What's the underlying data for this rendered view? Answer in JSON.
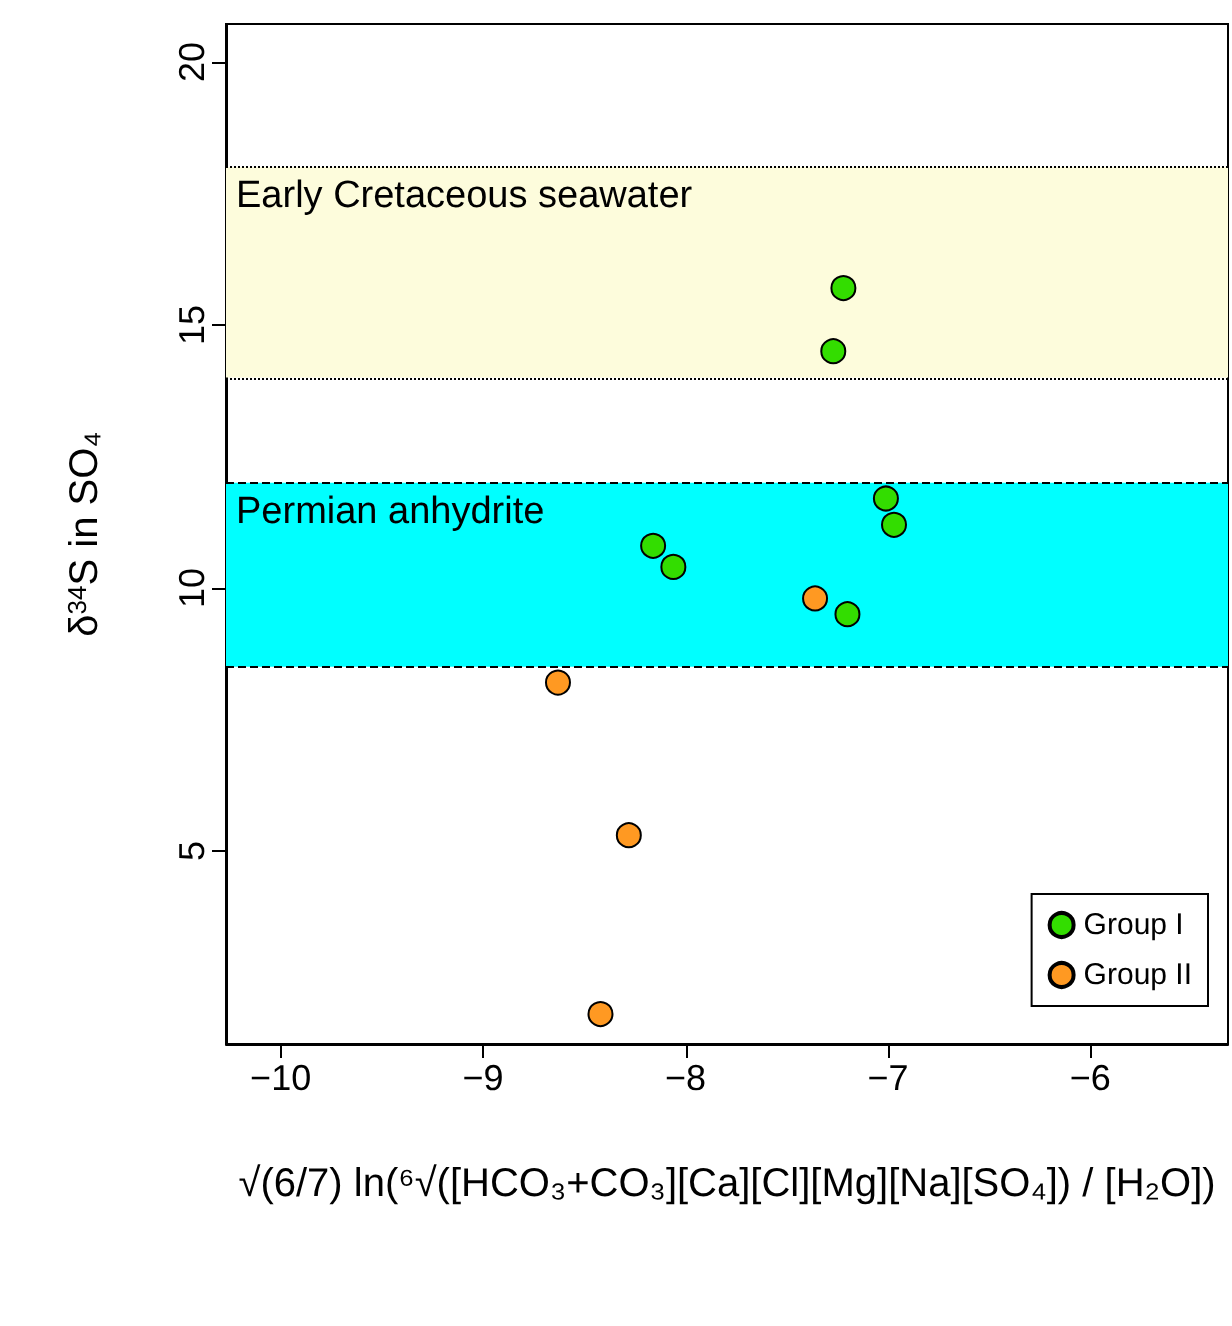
{
  "chart_data": {
    "type": "scatter",
    "xlabel": "√(6/7) ln(⁶√([HCO₃+CO₃][Ca][Cl][Mg][Na][SO₄]) / [H₂O])",
    "ylabel": "δ$^{34}$S in SO₄",
    "series": [
      {
        "name": "Group I",
        "color": "#33dd00",
        "x": [
          -7.22,
          -7.27,
          -7.01,
          -6.97,
          -8.16,
          -8.06,
          -7.2
        ],
        "values": [
          15.7,
          14.5,
          11.7,
          11.2,
          10.8,
          10.4,
          9.5
        ]
      },
      {
        "name": "Group II",
        "color": "#ff9922",
        "x": [
          -7.36,
          -8.63,
          -8.28,
          -8.42
        ],
        "values": [
          9.8,
          8.2,
          5.3,
          1.9
        ]
      }
    ],
    "xlim": [
      -10.27,
      -5.32
    ],
    "ylim": [
      1.33,
      20.72
    ],
    "xticks": [
      -10,
      -9,
      -8,
      -7,
      -6
    ],
    "yticks": [
      5,
      10,
      15,
      20
    ],
    "bands": [
      {
        "axis": "y",
        "from": 14,
        "to": 18,
        "label": "Early Cretaceous seawater",
        "color": "#fdfcdc"
      },
      {
        "axis": "y",
        "from": 8.5,
        "to": 12,
        "label": "Permian anhydrite",
        "color": "#00ffff"
      }
    ],
    "ref_lines": [
      {
        "axis": "y",
        "value": 18,
        "line_style": "dotted"
      },
      {
        "axis": "y",
        "value": 14,
        "line_style": "dotted"
      },
      {
        "axis": "y",
        "value": 12,
        "line_style": "dashed"
      },
      {
        "axis": "y",
        "value": 8.5,
        "line_style": "dashed"
      }
    ],
    "grid": false,
    "legend": "bottom right",
    "marker": "circle"
  }
}
